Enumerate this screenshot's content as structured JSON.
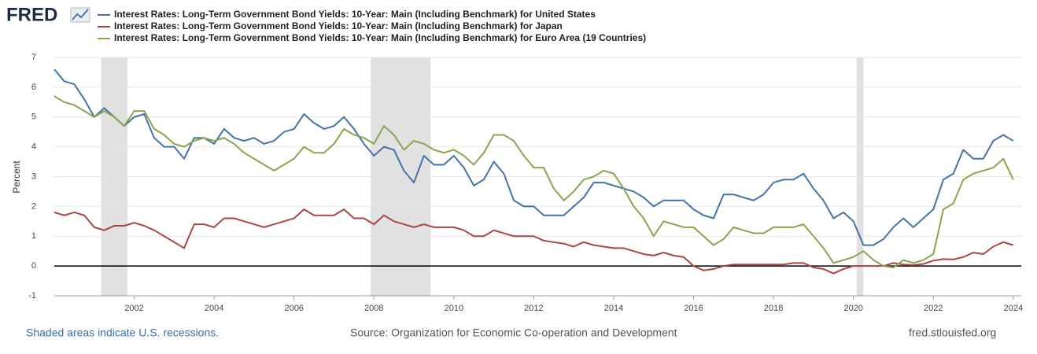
{
  "chart_data": {
    "type": "line",
    "logo": "FRED",
    "y_label": "Percent",
    "x": [
      2000,
      2000.25,
      2000.5,
      2000.75,
      2001,
      2001.25,
      2001.5,
      2001.75,
      2002,
      2002.25,
      2002.5,
      2002.75,
      2003,
      2003.25,
      2003.5,
      2003.75,
      2004,
      2004.25,
      2004.5,
      2004.75,
      2005,
      2005.25,
      2005.5,
      2005.75,
      2006,
      2006.25,
      2006.5,
      2006.75,
      2007,
      2007.25,
      2007.5,
      2007.75,
      2008,
      2008.25,
      2008.5,
      2008.75,
      2009,
      2009.25,
      2009.5,
      2009.75,
      2010,
      2010.25,
      2010.5,
      2010.75,
      2011,
      2011.25,
      2011.5,
      2011.75,
      2012,
      2012.25,
      2012.5,
      2012.75,
      2013,
      2013.25,
      2013.5,
      2013.75,
      2014,
      2014.25,
      2014.5,
      2014.75,
      2015,
      2015.25,
      2015.5,
      2015.75,
      2016,
      2016.25,
      2016.5,
      2016.75,
      2017,
      2017.25,
      2017.5,
      2017.75,
      2018,
      2018.25,
      2018.5,
      2018.75,
      2019,
      2019.25,
      2019.5,
      2019.75,
      2020,
      2020.25,
      2020.5,
      2020.75,
      2021,
      2021.25,
      2021.5,
      2021.75,
      2022,
      2022.25,
      2022.5,
      2022.75,
      2023,
      2023.25,
      2023.5,
      2023.75,
      2024
    ],
    "series": [
      {
        "name": "Interest Rates: Long-Term Government Bond Yields: 10-Year: Main (Including Benchmark) for United States",
        "color": "#4572a7",
        "values": [
          6.6,
          6.2,
          6.1,
          5.6,
          5.0,
          5.3,
          5.0,
          4.7,
          5.0,
          5.1,
          4.3,
          4.0,
          4.0,
          3.6,
          4.3,
          4.3,
          4.1,
          4.6,
          4.3,
          4.2,
          4.3,
          4.1,
          4.2,
          4.5,
          4.6,
          5.1,
          4.8,
          4.6,
          4.7,
          5.0,
          4.6,
          4.1,
          3.7,
          4.0,
          3.9,
          3.2,
          2.8,
          3.7,
          3.4,
          3.4,
          3.7,
          3.3,
          2.7,
          2.9,
          3.5,
          3.1,
          2.2,
          2.0,
          2.0,
          1.7,
          1.7,
          1.7,
          2.0,
          2.3,
          2.8,
          2.8,
          2.7,
          2.6,
          2.5,
          2.3,
          2.0,
          2.2,
          2.2,
          2.2,
          1.9,
          1.7,
          1.6,
          2.4,
          2.4,
          2.3,
          2.2,
          2.4,
          2.8,
          2.9,
          2.9,
          3.1,
          2.6,
          2.2,
          1.6,
          1.8,
          1.5,
          0.7,
          0.7,
          0.9,
          1.3,
          1.6,
          1.3,
          1.6,
          1.9,
          2.9,
          3.1,
          3.9,
          3.6,
          3.6,
          4.2,
          4.4,
          4.2
        ]
      },
      {
        "name": "Interest Rates: Long-Term Government Bond Yields: 10-Year: Main (Including Benchmark) for Japan",
        "color": "#aa4643",
        "values": [
          1.8,
          1.7,
          1.8,
          1.7,
          1.3,
          1.2,
          1.35,
          1.35,
          1.45,
          1.35,
          1.2,
          1.0,
          0.8,
          0.6,
          1.4,
          1.4,
          1.3,
          1.6,
          1.6,
          1.5,
          1.4,
          1.3,
          1.4,
          1.5,
          1.6,
          1.9,
          1.7,
          1.7,
          1.7,
          1.9,
          1.6,
          1.6,
          1.4,
          1.7,
          1.5,
          1.4,
          1.3,
          1.4,
          1.3,
          1.3,
          1.3,
          1.2,
          1.0,
          1.0,
          1.2,
          1.1,
          1.0,
          1.0,
          1.0,
          0.85,
          0.8,
          0.75,
          0.65,
          0.8,
          0.7,
          0.65,
          0.6,
          0.6,
          0.5,
          0.4,
          0.35,
          0.45,
          0.35,
          0.3,
          0.0,
          -0.15,
          -0.1,
          0.0,
          0.05,
          0.05,
          0.05,
          0.05,
          0.05,
          0.05,
          0.1,
          0.1,
          -0.05,
          -0.1,
          -0.25,
          -0.1,
          0.0,
          0.0,
          0.0,
          0.0,
          0.1,
          0.05,
          0.03,
          0.07,
          0.18,
          0.23,
          0.22,
          0.3,
          0.45,
          0.4,
          0.65,
          0.8,
          0.7
        ]
      },
      {
        "name": "Interest Rates: Long-Term Government Bond Yields: 10-Year: Main (Including Benchmark) for Euro Area (19 Countries)",
        "color": "#89a54e",
        "values": [
          5.7,
          5.5,
          5.4,
          5.2,
          5.0,
          5.2,
          5.0,
          4.7,
          5.2,
          5.2,
          4.6,
          4.4,
          4.1,
          4.0,
          4.2,
          4.3,
          4.2,
          4.3,
          4.1,
          3.8,
          3.6,
          3.4,
          3.2,
          3.4,
          3.6,
          4.0,
          3.8,
          3.8,
          4.1,
          4.6,
          4.4,
          4.3,
          4.1,
          4.7,
          4.4,
          3.9,
          4.2,
          4.1,
          3.9,
          3.8,
          3.9,
          3.7,
          3.4,
          3.8,
          4.4,
          4.4,
          4.2,
          3.7,
          3.3,
          3.3,
          2.6,
          2.2,
          2.5,
          2.9,
          3.0,
          3.2,
          3.1,
          2.6,
          2.0,
          1.6,
          1.0,
          1.5,
          1.4,
          1.3,
          1.3,
          1.0,
          0.7,
          0.9,
          1.3,
          1.2,
          1.1,
          1.1,
          1.3,
          1.3,
          1.3,
          1.4,
          1.0,
          0.6,
          0.1,
          0.2,
          0.3,
          0.5,
          0.2,
          0.0,
          -0.05,
          0.2,
          0.1,
          0.2,
          0.4,
          1.9,
          2.1,
          2.9,
          3.1,
          3.2,
          3.3,
          3.6,
          2.9
        ]
      }
    ],
    "recessions": [
      {
        "start": 2001.17,
        "end": 2001.83
      },
      {
        "start": 2007.92,
        "end": 2009.42
      },
      {
        "start": 2020.08,
        "end": 2020.25
      }
    ],
    "xlim": [
      2000,
      2024.2
    ],
    "xticks": [
      2002,
      2004,
      2006,
      2008,
      2010,
      2012,
      2014,
      2016,
      2018,
      2020,
      2022,
      2024
    ],
    "ylim": [
      -1,
      7
    ],
    "yticks": [
      -1,
      0,
      1,
      2,
      3,
      4,
      5,
      6,
      7
    ],
    "grid": true,
    "recession_note": "Shaded areas indicate U.S. recessions.",
    "source": "Source: Organization for Economic Co-operation and Development",
    "site": "fred.stlouisfed.org"
  }
}
